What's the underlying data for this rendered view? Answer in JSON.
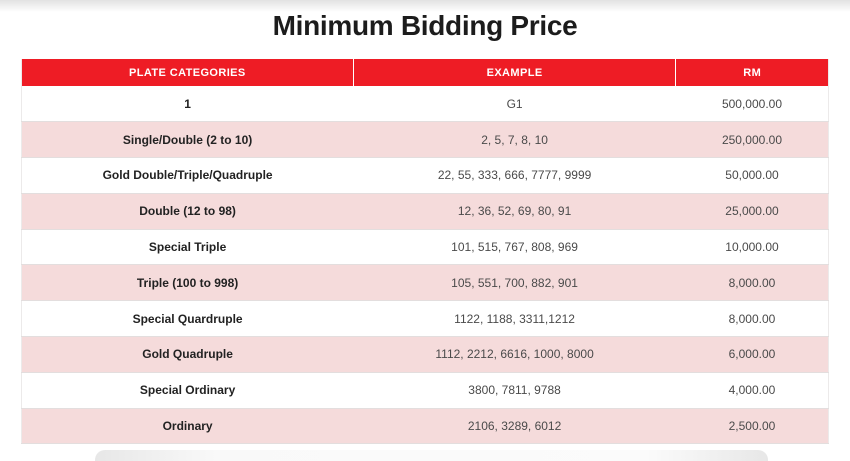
{
  "page": {
    "title": "Minimum Bidding Price"
  },
  "colors": {
    "accent_red": "#ee1c25",
    "row_pink": "#f5dbdb"
  },
  "table": {
    "headers": [
      "PLATE CATEGORIES",
      "EXAMPLE",
      "RM"
    ],
    "rows": [
      {
        "category": "1",
        "example": "G1",
        "rm": "500,000.00"
      },
      {
        "category": "Single/Double (2 to 10)",
        "example": "2, 5, 7, 8, 10",
        "rm": "250,000.00"
      },
      {
        "category": "Gold Double/Triple/Quadruple",
        "example": "22, 55, 333, 666, 7777, 9999",
        "rm": "50,000.00"
      },
      {
        "category": "Double (12 to 98)",
        "example": "12, 36, 52, 69, 80, 91",
        "rm": "25,000.00"
      },
      {
        "category": "Special Triple",
        "example": "101, 515, 767, 808, 969",
        "rm": "10,000.00"
      },
      {
        "category": "Triple (100 to 998)",
        "example": "105, 551, 700, 882, 901",
        "rm": "8,000.00"
      },
      {
        "category": "Special Quardruple",
        "example": "1122, 1188, 3311,1212",
        "rm": "8,000.00"
      },
      {
        "category": "Gold Quadruple",
        "example": "1112, 2212, 6616, 1000, 8000",
        "rm": "6,000.00"
      },
      {
        "category": "Special Ordinary",
        "example": "3800, 7811, 9788",
        "rm": "4,000.00"
      },
      {
        "category": "Ordinary",
        "example": "2106, 3289, 6012",
        "rm": "2,500.00"
      }
    ]
  }
}
